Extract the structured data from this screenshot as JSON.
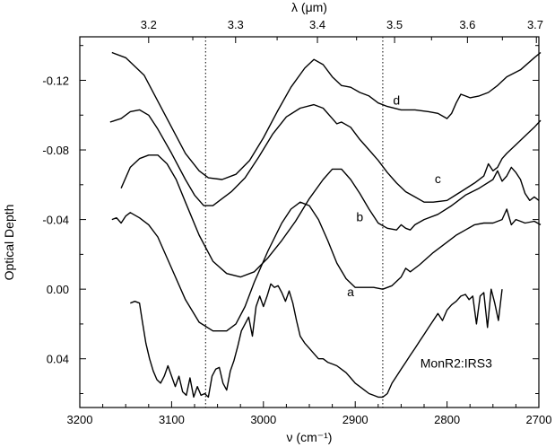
{
  "chart_data": {
    "type": "line",
    "title": "",
    "xlabel": "ν (cm⁻¹)",
    "ylabel": "Optical Depth",
    "top_xlabel": "λ (μm)",
    "xlim": [
      3200,
      2700
    ],
    "ylim": [
      0.068,
      -0.145
    ],
    "y_inverted": true,
    "x_ticks": [
      3200,
      3100,
      3000,
      2900,
      2800,
      2700
    ],
    "x_tick_labels": [
      "3200",
      "3100",
      "3000",
      "2900",
      "2800",
      "2700"
    ],
    "y_ticks": [
      -0.12,
      -0.08,
      -0.04,
      0.0,
      0.04
    ],
    "y_tick_labels": [
      "-0.12",
      "-0.08",
      "-0.04",
      "0.00",
      "0.04"
    ],
    "top_ticks_um": [
      3.2,
      3.3,
      3.4,
      3.5,
      3.6,
      3.7
    ],
    "top_tick_labels": [
      "3.2",
      "3.3",
      "3.4",
      "3.5",
      "3.6",
      "3.7"
    ],
    "reference_lines_cm": [
      3063,
      2870
    ],
    "grid": false,
    "series": [
      {
        "name": "d",
        "label_at": [
          2855,
          -0.106
        ],
        "x": [
          3165,
          3150,
          3130,
          3115,
          3100,
          3085,
          3070,
          3060,
          3045,
          3030,
          3015,
          3000,
          2985,
          2970,
          2955,
          2945,
          2935,
          2925,
          2915,
          2905,
          2895,
          2885,
          2875,
          2865,
          2850,
          2835,
          2820,
          2810,
          2800,
          2795,
          2790,
          2785,
          2780,
          2775,
          2765,
          2755,
          2745,
          2735,
          2720,
          2705,
          2698
        ],
        "y": [
          -0.136,
          -0.133,
          -0.123,
          -0.108,
          -0.093,
          -0.078,
          -0.068,
          -0.064,
          -0.063,
          -0.066,
          -0.074,
          -0.087,
          -0.102,
          -0.116,
          -0.127,
          -0.132,
          -0.129,
          -0.122,
          -0.117,
          -0.116,
          -0.113,
          -0.111,
          -0.107,
          -0.105,
          -0.103,
          -0.103,
          -0.102,
          -0.101,
          -0.098,
          -0.101,
          -0.107,
          -0.112,
          -0.111,
          -0.11,
          -0.111,
          -0.113,
          -0.117,
          -0.122,
          -0.126,
          -0.133,
          -0.136
        ]
      },
      {
        "name": "c",
        "label_at": [
          2810,
          -0.061
        ],
        "x": [
          3167,
          3155,
          3145,
          3135,
          3125,
          3115,
          3100,
          3085,
          3075,
          3065,
          3055,
          3045,
          3035,
          3020,
          3005,
          2990,
          2975,
          2960,
          2945,
          2935,
          2925,
          2920,
          2915,
          2905,
          2895,
          2885,
          2875,
          2865,
          2855,
          2845,
          2835,
          2825,
          2815,
          2800,
          2785,
          2770,
          2760,
          2755,
          2750,
          2745,
          2740,
          2735,
          2725,
          2715,
          2705,
          2698
        ],
        "y": [
          -0.096,
          -0.098,
          -0.102,
          -0.103,
          -0.1,
          -0.092,
          -0.078,
          -0.063,
          -0.054,
          -0.048,
          -0.048,
          -0.052,
          -0.056,
          -0.064,
          -0.076,
          -0.089,
          -0.099,
          -0.104,
          -0.106,
          -0.104,
          -0.098,
          -0.095,
          -0.096,
          -0.093,
          -0.086,
          -0.08,
          -0.074,
          -0.067,
          -0.061,
          -0.056,
          -0.053,
          -0.05,
          -0.05,
          -0.051,
          -0.056,
          -0.061,
          -0.065,
          -0.072,
          -0.068,
          -0.07,
          -0.075,
          -0.078,
          -0.083,
          -0.088,
          -0.093,
          -0.097
        ]
      },
      {
        "name": "b",
        "label_at": [
          2895,
          -0.039
        ],
        "x": [
          3155,
          3145,
          3135,
          3125,
          3115,
          3105,
          3095,
          3085,
          3070,
          3055,
          3040,
          3025,
          3010,
          2995,
          2980,
          2965,
          2950,
          2935,
          2925,
          2915,
          2905,
          2895,
          2885,
          2875,
          2865,
          2855,
          2850,
          2845,
          2840,
          2835,
          2825,
          2810,
          2795,
          2780,
          2765,
          2750,
          2745,
          2740,
          2735,
          2730,
          2725,
          2720,
          2715,
          2710,
          2705,
          2700
        ],
        "y": [
          -0.058,
          -0.07,
          -0.075,
          -0.077,
          -0.077,
          -0.072,
          -0.063,
          -0.05,
          -0.031,
          -0.016,
          -0.009,
          -0.007,
          -0.01,
          -0.018,
          -0.028,
          -0.039,
          -0.052,
          -0.063,
          -0.069,
          -0.069,
          -0.063,
          -0.055,
          -0.046,
          -0.038,
          -0.035,
          -0.034,
          -0.037,
          -0.035,
          -0.034,
          -0.037,
          -0.04,
          -0.043,
          -0.048,
          -0.054,
          -0.058,
          -0.063,
          -0.068,
          -0.062,
          -0.065,
          -0.07,
          -0.067,
          -0.063,
          -0.055,
          -0.051,
          -0.053,
          -0.051
        ]
      },
      {
        "name": "a",
        "label_at": [
          2905,
          0.004
        ],
        "x": [
          3165,
          3160,
          3155,
          3150,
          3145,
          3135,
          3125,
          3115,
          3100,
          3085,
          3070,
          3055,
          3040,
          3030,
          3020,
          3010,
          2995,
          2980,
          2970,
          2960,
          2950,
          2940,
          2930,
          2920,
          2910,
          2900,
          2890,
          2880,
          2870,
          2860,
          2850,
          2845,
          2840,
          2830,
          2815,
          2800,
          2790,
          2780,
          2770,
          2760,
          2750,
          2740,
          2735,
          2730,
          2725,
          2720,
          2715,
          2705,
          2698
        ],
        "y": [
          -0.04,
          -0.041,
          -0.038,
          -0.042,
          -0.044,
          -0.041,
          -0.037,
          -0.03,
          -0.012,
          0.006,
          0.019,
          0.024,
          0.024,
          0.02,
          0.01,
          -0.004,
          -0.022,
          -0.038,
          -0.046,
          -0.05,
          -0.048,
          -0.04,
          -0.028,
          -0.015,
          -0.006,
          -0.001,
          -0.001,
          -0.001,
          0.0,
          -0.002,
          -0.007,
          -0.012,
          -0.01,
          -0.014,
          -0.021,
          -0.027,
          -0.031,
          -0.034,
          -0.037,
          -0.038,
          -0.038,
          -0.04,
          -0.046,
          -0.037,
          -0.04,
          -0.039,
          -0.038,
          -0.039,
          -0.037
        ]
      },
      {
        "name": "MonR2:IRS3",
        "label_at": [
          2790,
          0.045
        ],
        "x": [
          3145,
          3140,
          3135,
          3132,
          3128,
          3124,
          3120,
          3116,
          3112,
          3108,
          3104,
          3100,
          3096,
          3092,
          3088,
          3084,
          3080,
          3076,
          3072,
          3068,
          3064,
          3060,
          3056,
          3052,
          3048,
          3044,
          3040,
          3036,
          3032,
          3028,
          3024,
          3020,
          3016,
          3012,
          3008,
          3004,
          3000,
          2996,
          2992,
          2988,
          2984,
          2980,
          2976,
          2972,
          2968,
          2964,
          2960,
          2955,
          2950,
          2945,
          2940,
          2935,
          2930,
          2925,
          2920,
          2915,
          2910,
          2905,
          2900,
          2895,
          2890,
          2885,
          2880,
          2875,
          2870,
          2865,
          2860,
          2855,
          2850,
          2845,
          2840,
          2835,
          2830,
          2825,
          2820,
          2815,
          2810,
          2805,
          2800,
          2795,
          2790,
          2785,
          2780,
          2776,
          2772,
          2768,
          2764,
          2760,
          2756,
          2752,
          2748,
          2744,
          2740
        ],
        "y": [
          0.008,
          0.007,
          0.008,
          0.018,
          0.031,
          0.04,
          0.047,
          0.052,
          0.054,
          0.05,
          0.044,
          0.05,
          0.056,
          0.05,
          0.059,
          0.061,
          0.051,
          0.062,
          0.056,
          0.061,
          0.06,
          0.062,
          0.05,
          0.046,
          0.045,
          0.054,
          0.058,
          0.047,
          0.041,
          0.033,
          0.024,
          0.02,
          0.016,
          0.027,
          0.01,
          0.004,
          0.01,
          0.004,
          -0.003,
          -0.001,
          -0.002,
          0.002,
          0.007,
          0.001,
          0.008,
          0.018,
          0.027,
          0.031,
          0.034,
          0.037,
          0.04,
          0.04,
          0.042,
          0.043,
          0.044,
          0.046,
          0.048,
          0.051,
          0.054,
          0.056,
          0.058,
          0.06,
          0.061,
          0.062,
          0.062,
          0.06,
          0.054,
          0.05,
          0.046,
          0.042,
          0.038,
          0.034,
          0.03,
          0.026,
          0.022,
          0.018,
          0.014,
          0.018,
          0.012,
          0.009,
          0.007,
          0.004,
          0.003,
          0.006,
          0.004,
          0.02,
          0.004,
          0.002,
          0.022,
          0.0,
          0.008,
          0.018,
          0.0
        ]
      }
    ]
  }
}
